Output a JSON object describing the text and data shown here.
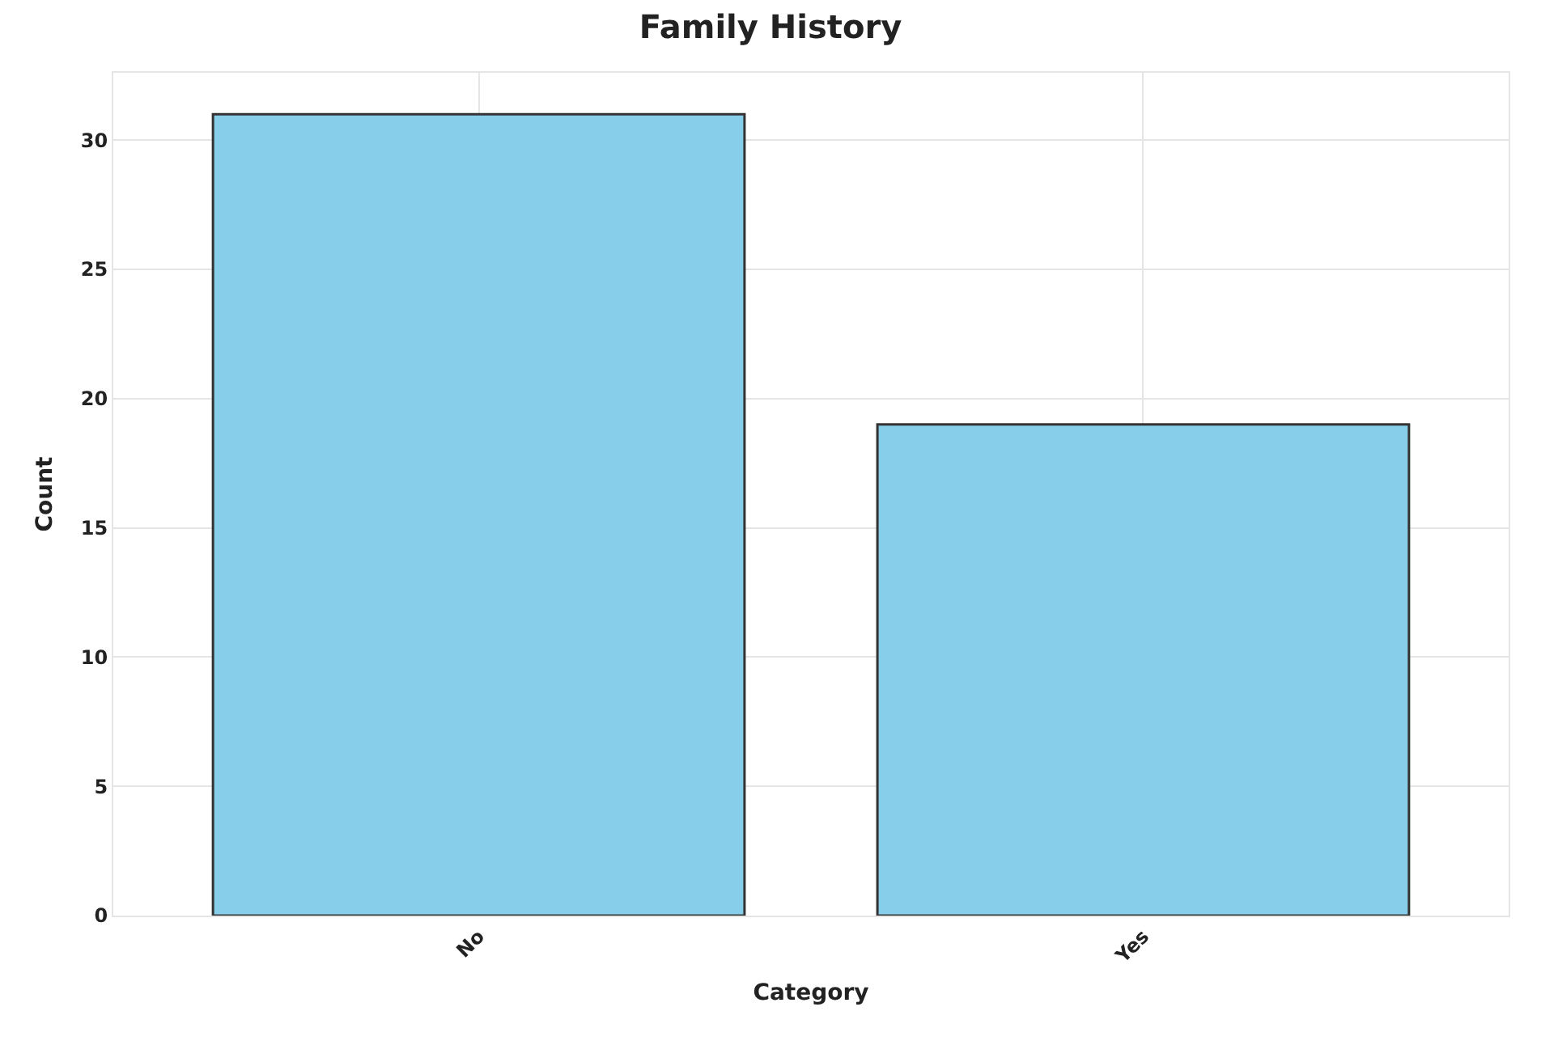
{
  "chart_data": {
    "type": "bar",
    "title": "Family History",
    "xlabel": "Category",
    "ylabel": "Count",
    "categories": [
      "No",
      "Yes"
    ],
    "values": [
      31,
      19
    ],
    "color": "#87ceeb",
    "ylim": [
      0,
      32.6
    ],
    "yticks": [
      0,
      5,
      10,
      15,
      20,
      25,
      30
    ],
    "grid": true
  }
}
